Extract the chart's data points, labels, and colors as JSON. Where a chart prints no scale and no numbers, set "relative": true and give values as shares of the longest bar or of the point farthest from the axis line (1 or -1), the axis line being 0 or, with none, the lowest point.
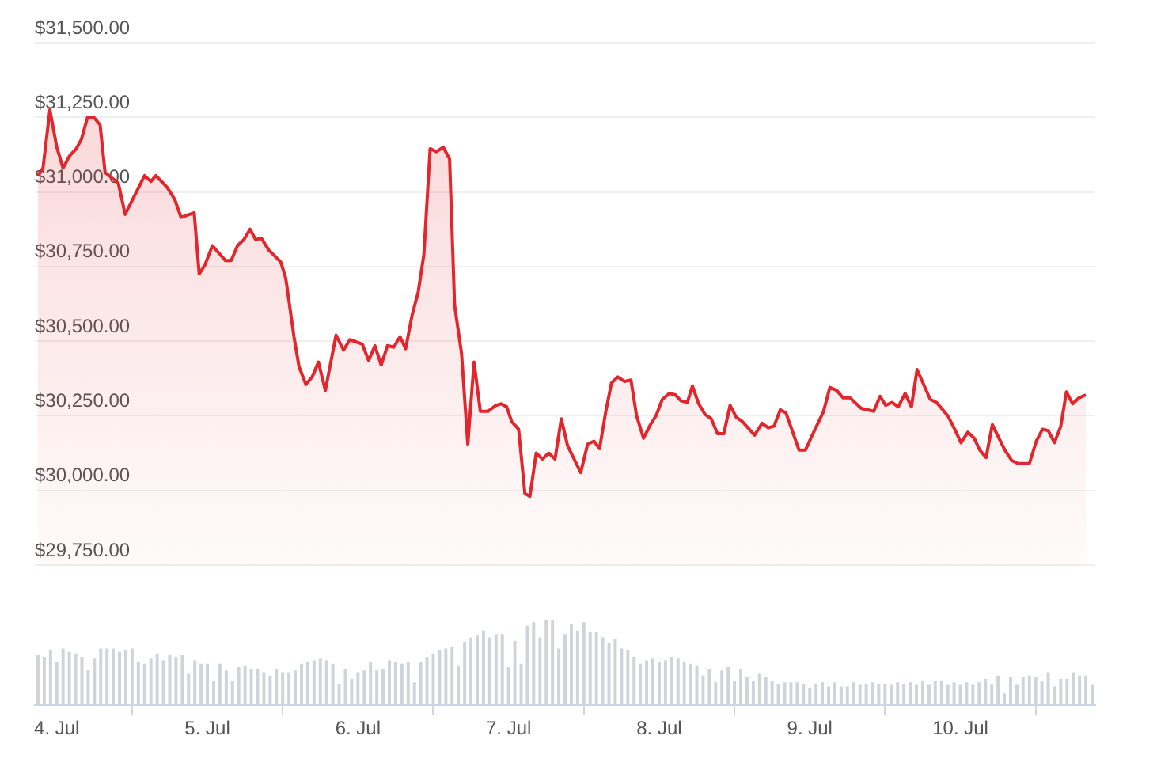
{
  "chart_data": [
    {
      "type": "area",
      "grid": "y",
      "tick_labels": "y",
      "xlim": [
        "--07-03T20:30",
        "--07-10T21:30"
      ],
      "ylim": [
        29750,
        31500
      ],
      "yticks": [
        {
          "value": 29750,
          "label": "$29,750.00"
        },
        {
          "value": 30000,
          "label": "$30,000.00"
        },
        {
          "value": 30250,
          "label": "$30,250.00"
        },
        {
          "value": 30500,
          "label": "$30,500.00"
        },
        {
          "value": 30750,
          "label": "$30,750.00"
        },
        {
          "value": 31000,
          "label": "$31,000.00"
        },
        {
          "value": 31250,
          "label": "$31,250.00"
        },
        {
          "value": 31500,
          "label": "$31,500.00"
        }
      ],
      "series": [
        {
          "color": "#e3262c",
          "x": [
            "--07-03T21:00",
            "--07-03T21:48",
            "--07-03T22:54",
            "--07-04T00:00",
            "--07-04T01:00",
            "--07-04T02:00",
            "--07-04T03:06",
            "--07-04T03:54",
            "--07-04T04:54",
            "--07-04T05:54",
            "--07-04T06:54",
            "--07-04T07:42",
            "--07-04T09:48",
            "--07-04T10:54",
            "--07-04T14:00",
            "--07-04T15:00",
            "--07-04T15:48",
            "--07-04T17:36",
            "--07-04T18:48",
            "--07-04T19:48",
            "--07-04T21:54",
            "--07-04T22:42",
            "--07-04T23:36",
            "--07-05T00:48",
            "--07-05T02:54",
            "--07-05T03:48",
            "--07-05T04:48",
            "--07-05T05:48",
            "--07-05T06:48",
            "--07-05T07:42",
            "--07-05T08:36",
            "--07-05T09:48",
            "--07-05T11:42",
            "--07-05T12:30",
            "--07-05T13:48",
            "--07-05T14:36",
            "--07-05T15:42",
            "--07-05T16:42",
            "--07-05T17:42",
            "--07-05T18:48",
            "--07-05T20:30",
            "--07-05T21:42",
            "--07-05T22:42",
            "--07-06T00:42",
            "--07-06T01:42",
            "--07-06T02:42",
            "--07-06T03:42",
            "--07-06T04:42",
            "--07-06T05:42",
            "--07-06T06:42",
            "--07-06T07:36",
            "--07-06T08:36",
            "--07-06T09:36",
            "--07-06T10:30",
            "--07-06T11:30",
            "--07-06T12:30",
            "--07-06T13:36",
            "--07-06T14:36",
            "--07-06T15:24",
            "--07-06T16:30",
            "--07-06T17:30",
            "--07-06T18:30",
            "--07-06T19:30",
            "--07-06T20:42",
            "--07-06T22:00",
            "--07-06T22:48",
            "--07-06T23:42",
            "--07-07T00:30",
            "--07-07T01:36",
            "--07-07T02:36",
            "--07-07T03:24",
            "--07-07T04:24",
            "--07-07T05:24",
            "--07-07T06:24",
            "--07-07T07:24",
            "--07-07T08:24",
            "--07-07T09:24",
            "--07-07T11:30",
            "--07-07T12:36",
            "--07-07T13:36",
            "--07-07T14:30",
            "--07-07T15:30",
            "--07-07T16:24",
            "--07-07T17:24",
            "--07-07T18:30",
            "--07-07T19:30",
            "--07-07T20:24",
            "--07-07T21:30",
            "--07-07T22:36",
            "--07-07T23:30",
            "--07-08T00:30",
            "--07-08T01:36",
            "--07-08T02:36",
            "--07-08T03:30",
            "--07-08T04:30",
            "--07-08T05:18",
            "--07-08T06:18",
            "--07-08T07:18",
            "--07-08T08:18",
            "--07-08T09:18",
            "--07-08T10:18",
            "--07-08T11:18",
            "--07-08T12:18",
            "--07-08T13:18",
            "--07-08T15:12",
            "--07-08T16:24",
            "--07-08T17:24",
            "--07-08T18:18",
            "--07-08T19:18",
            "--07-08T20:12",
            "--07-08T22:18",
            "--07-08T23:18",
            "--07-09T00:24",
            "--07-09T02:12",
            "--07-09T03:12",
            "--07-09T04:18",
            "--07-09T05:18",
            "--07-09T06:24",
            "--07-09T08:12",
            "--07-09T10:12",
            "--07-09T11:12",
            "--07-09T12:06",
            "--07-09T13:06",
            "--07-09T14:06",
            "--07-09T15:12",
            "--07-09T16:12",
            "--07-09T17:06",
            "--07-09T19:12",
            "--07-09T20:12",
            "--07-09T22:00",
            "--07-09T23:06",
            "--07-10T00:06",
            "--07-10T01:12",
            "--07-10T02:12",
            "--07-10T03:06",
            "--07-10T04:06",
            "--07-10T05:06",
            "--07-10T07:06",
            "--07-10T08:12",
            "--07-10T09:12",
            "--07-10T11:00",
            "--07-10T12:06",
            "--07-10T13:06",
            "--07-10T14:00",
            "--07-10T15:00",
            "--07-10T16:00",
            "--07-10T16:54",
            "--07-10T17:54",
            "--07-10T18:54",
            "--07-10T20:00"
          ],
          "values": [
            31055,
            31080,
            31275,
            31150,
            31080,
            31120,
            31145,
            31175,
            31250,
            31250,
            31225,
            31065,
            31030,
            30925,
            31055,
            31035,
            31055,
            31015,
            30975,
            30915,
            30930,
            30725,
            30755,
            30820,
            30770,
            30770,
            30820,
            30840,
            30875,
            30840,
            30845,
            30805,
            30765,
            30710,
            30515,
            30415,
            30355,
            30380,
            30430,
            30335,
            30520,
            30470,
            30505,
            30490,
            30435,
            30485,
            30420,
            30485,
            30480,
            30515,
            30475,
            30585,
            30665,
            30790,
            31145,
            31135,
            31150,
            31110,
            30620,
            30460,
            30155,
            30430,
            30265,
            30265,
            30285,
            30290,
            30280,
            30230,
            30205,
            29990,
            29980,
            30125,
            30105,
            30125,
            30105,
            30240,
            30150,
            30060,
            30155,
            30165,
            30140,
            30265,
            30360,
            30380,
            30365,
            30370,
            30250,
            30175,
            30220,
            30250,
            30305,
            30325,
            30320,
            30300,
            30295,
            30350,
            30290,
            30255,
            30240,
            30190,
            30190,
            30285,
            30245,
            30230,
            30185,
            30225,
            30210,
            30215,
            30270,
            30260,
            30135,
            30135,
            30185,
            30265,
            30345,
            30335,
            30310,
            30310,
            30275,
            30265,
            30315,
            30285,
            30295,
            30280,
            30325,
            30280,
            30405,
            30305,
            30295,
            30250,
            30205,
            30160,
            30195,
            30175,
            30135,
            30110,
            30220,
            30135,
            30100,
            30090,
            30090,
            30165,
            30205,
            30200,
            30160,
            30215,
            30330,
            30290,
            30310,
            30320
          ]
        }
      ]
    },
    {
      "type": "bar",
      "relative": true,
      "tick_labels": "x",
      "color": "#d0d3da",
      "xlim": [
        "--07-03T20:30",
        "--07-10T21:30"
      ],
      "xticks": [
        {
          "value": "--07-04",
          "label": "4. Jul"
        },
        {
          "value": "--07-05",
          "label": "5. Jul"
        },
        {
          "value": "--07-06",
          "label": "6. Jul"
        },
        {
          "value": "--07-07",
          "label": "7. Jul"
        },
        {
          "value": "--07-08",
          "label": "8. Jul"
        },
        {
          "value": "--07-09",
          "label": "9. Jul"
        },
        {
          "value": "--07-10",
          "label": "10. Jul"
        }
      ],
      "x": [
        "--07-03T21:00",
        "--07-03T22:00",
        "--07-03T23:00",
        "--07-04T00:00",
        "--07-04T01:00",
        "--07-04T02:00",
        "--07-04T03:00",
        "--07-04T04:00",
        "--07-04T05:00",
        "--07-04T06:00",
        "--07-04T07:00",
        "--07-04T08:00",
        "--07-04T09:00",
        "--07-04T10:00",
        "--07-04T11:00",
        "--07-04T12:00",
        "--07-04T13:00",
        "--07-04T14:00",
        "--07-04T15:00",
        "--07-04T16:00",
        "--07-04T17:00",
        "--07-04T18:00",
        "--07-04T19:00",
        "--07-04T20:00",
        "--07-04T21:00",
        "--07-04T22:00",
        "--07-04T23:00",
        "--07-05T00:00",
        "--07-05T01:00",
        "--07-05T02:00",
        "--07-05T03:00",
        "--07-05T04:00",
        "--07-05T05:00",
        "--07-05T06:00",
        "--07-05T07:00",
        "--07-05T08:00",
        "--07-05T09:00",
        "--07-05T10:00",
        "--07-05T11:00",
        "--07-05T12:00",
        "--07-05T13:00",
        "--07-05T14:00",
        "--07-05T15:00",
        "--07-05T16:00",
        "--07-05T17:00",
        "--07-05T18:00",
        "--07-05T19:00",
        "--07-05T20:00",
        "--07-05T21:00",
        "--07-05T22:00",
        "--07-05T23:00",
        "--07-06T00:00",
        "--07-06T01:00",
        "--07-06T02:00",
        "--07-06T03:00",
        "--07-06T04:00",
        "--07-06T05:00",
        "--07-06T06:00",
        "--07-06T07:00",
        "--07-06T08:00",
        "--07-06T09:00",
        "--07-06T10:00",
        "--07-06T11:00",
        "--07-06T12:00",
        "--07-06T13:00",
        "--07-06T14:00",
        "--07-06T15:00",
        "--07-06T16:00",
        "--07-06T17:00",
        "--07-06T18:00",
        "--07-06T19:00",
        "--07-06T20:00",
        "--07-06T21:00",
        "--07-06T22:00",
        "--07-06T23:00",
        "--07-07T00:00",
        "--07-07T01:00",
        "--07-07T02:00",
        "--07-07T03:00",
        "--07-07T04:00",
        "--07-07T05:00",
        "--07-07T06:00",
        "--07-07T07:00",
        "--07-07T08:00",
        "--07-07T09:00",
        "--07-07T10:00",
        "--07-07T11:00",
        "--07-07T12:00",
        "--07-07T13:00",
        "--07-07T14:00",
        "--07-07T15:00",
        "--07-07T16:00",
        "--07-07T17:00",
        "--07-07T18:00",
        "--07-07T19:00",
        "--07-07T20:00",
        "--07-07T21:00",
        "--07-07T22:00",
        "--07-07T23:00",
        "--07-08T00:00",
        "--07-08T01:00",
        "--07-08T02:00",
        "--07-08T03:00",
        "--07-08T04:00",
        "--07-08T05:00",
        "--07-08T06:00",
        "--07-08T07:00",
        "--07-08T08:00",
        "--07-08T09:00",
        "--07-08T10:00",
        "--07-08T11:00",
        "--07-08T12:00",
        "--07-08T13:00",
        "--07-08T14:00",
        "--07-08T15:00",
        "--07-08T16:00",
        "--07-08T17:00",
        "--07-08T18:00",
        "--07-08T19:00",
        "--07-08T20:00",
        "--07-08T21:00",
        "--07-08T22:00",
        "--07-08T23:00",
        "--07-09T00:00",
        "--07-09T01:00",
        "--07-09T02:00",
        "--07-09T03:00",
        "--07-09T04:00",
        "--07-09T05:00",
        "--07-09T06:00",
        "--07-09T07:00",
        "--07-09T08:00",
        "--07-09T09:00",
        "--07-09T10:00",
        "--07-09T11:00",
        "--07-09T12:00",
        "--07-09T13:00",
        "--07-09T14:00",
        "--07-09T15:00",
        "--07-09T16:00",
        "--07-09T17:00",
        "--07-09T18:00",
        "--07-09T19:00",
        "--07-09T20:00",
        "--07-09T21:00",
        "--07-09T22:00",
        "--07-09T23:00",
        "--07-10T00:00",
        "--07-10T01:00",
        "--07-10T02:00",
        "--07-10T03:00",
        "--07-10T04:00",
        "--07-10T05:00",
        "--07-10T06:00",
        "--07-10T07:00",
        "--07-10T08:00",
        "--07-10T09:00",
        "--07-10T10:00",
        "--07-10T11:00",
        "--07-10T12:00",
        "--07-10T13:00",
        "--07-10T14:00",
        "--07-10T15:00",
        "--07-10T16:00",
        "--07-10T17:00",
        "--07-10T18:00",
        "--07-10T19:00",
        "--07-10T20:00",
        "--07-10T21:00"
      ],
      "values": [
        0.59,
        0.57,
        0.65,
        0.51,
        0.67,
        0.63,
        0.61,
        0.57,
        0.41,
        0.55,
        0.67,
        0.67,
        0.67,
        0.63,
        0.65,
        0.67,
        0.51,
        0.49,
        0.55,
        0.61,
        0.53,
        0.59,
        0.57,
        0.59,
        0.37,
        0.53,
        0.49,
        0.49,
        0.29,
        0.49,
        0.41,
        0.29,
        0.45,
        0.47,
        0.43,
        0.43,
        0.39,
        0.35,
        0.43,
        0.39,
        0.39,
        0.41,
        0.49,
        0.51,
        0.53,
        0.55,
        0.53,
        0.49,
        0.25,
        0.43,
        0.31,
        0.39,
        0.41,
        0.51,
        0.41,
        0.43,
        0.53,
        0.51,
        0.49,
        0.51,
        0.27,
        0.51,
        0.57,
        0.61,
        0.65,
        0.67,
        0.69,
        0.47,
        0.75,
        0.8,
        0.82,
        0.88,
        0.8,
        0.84,
        0.84,
        0.45,
        0.76,
        0.49,
        0.94,
        0.98,
        0.8,
        1,
        1,
        0.67,
        0.84,
        0.96,
        0.88,
        0.98,
        0.86,
        0.86,
        0.8,
        0.73,
        0.78,
        0.67,
        0.65,
        0.57,
        0.49,
        0.53,
        0.55,
        0.51,
        0.53,
        0.57,
        0.55,
        0.51,
        0.49,
        0.47,
        0.35,
        0.43,
        0.27,
        0.41,
        0.45,
        0.29,
        0.43,
        0.33,
        0.29,
        0.37,
        0.33,
        0.29,
        0.25,
        0.27,
        0.27,
        0.27,
        0.25,
        0.2,
        0.25,
        0.27,
        0.22,
        0.27,
        0.22,
        0.22,
        0.27,
        0.24,
        0.25,
        0.27,
        0.25,
        0.25,
        0.24,
        0.27,
        0.25,
        0.27,
        0.24,
        0.29,
        0.24,
        0.29,
        0.29,
        0.24,
        0.27,
        0.24,
        0.27,
        0.24,
        0.27,
        0.31,
        0.24,
        0.35,
        0.14,
        0.33,
        0.24,
        0.33,
        0.35,
        0.33,
        0.29,
        0.39,
        0.22,
        0.31,
        0.31,
        0.39,
        0.35,
        0.35,
        0.24
      ]
    }
  ]
}
